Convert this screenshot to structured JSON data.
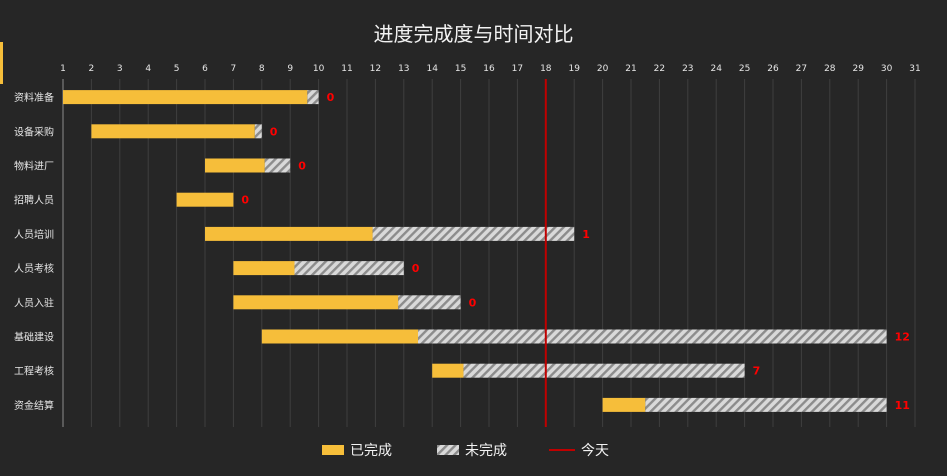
{
  "chart_data": {
    "type": "bar",
    "subtype": "gantt",
    "title": "进度完成度与时间对比",
    "x_ticks": [
      "1",
      "2",
      "3",
      "4",
      "5",
      "6",
      "7",
      "8",
      "9",
      "10",
      "11",
      "12",
      "13",
      "14",
      "15",
      "16",
      "17",
      "18",
      "19",
      "20",
      "21",
      "22",
      "23",
      "24",
      "25",
      "26",
      "27",
      "28",
      "29",
      "30",
      "31"
    ],
    "xlim": [
      1,
      31
    ],
    "tasks": [
      {
        "name": "资料准备",
        "start": 1,
        "end": 10,
        "completed_until": 9.6,
        "label": "0"
      },
      {
        "name": "设备采购",
        "start": 2,
        "end": 8,
        "completed_until": 7.75,
        "label": "0"
      },
      {
        "name": "物料进厂",
        "start": 6,
        "end": 9,
        "completed_until": 8.1,
        "label": "0"
      },
      {
        "name": "招聘人员",
        "start": 5,
        "end": 7,
        "completed_until": 7,
        "label": "0"
      },
      {
        "name": "人员培训",
        "start": 6,
        "end": 19,
        "completed_until": 11.9,
        "label": "1"
      },
      {
        "name": "人员考核",
        "start": 7,
        "end": 13,
        "completed_until": 9.15,
        "label": "0"
      },
      {
        "name": "人员入驻",
        "start": 7,
        "end": 15,
        "completed_until": 12.8,
        "label": "0"
      },
      {
        "name": "基础建设",
        "start": 8,
        "end": 30,
        "completed_until": 13.5,
        "label": "12"
      },
      {
        "name": "工程考核",
        "start": 14,
        "end": 25,
        "completed_until": 15.1,
        "label": "7"
      },
      {
        "name": "资金结算",
        "start": 20,
        "end": 30,
        "completed_until": 21.5,
        "label": "11"
      }
    ],
    "today": 18,
    "legend": {
      "completed": "已完成",
      "remaining": "未完成",
      "today": "今天"
    },
    "legend_position": "bottom",
    "grid": true
  },
  "colors": {
    "background": "#262626",
    "completed": "#f6be3a",
    "remaining_base": "#d9d9d9",
    "remaining_stripe": "#8c8c8c",
    "today_line": "#c00000",
    "labels": "#ff0000",
    "axis_text": "#e6e6e6",
    "grid": "#3f3f3f",
    "accent": "#f6be3a"
  }
}
